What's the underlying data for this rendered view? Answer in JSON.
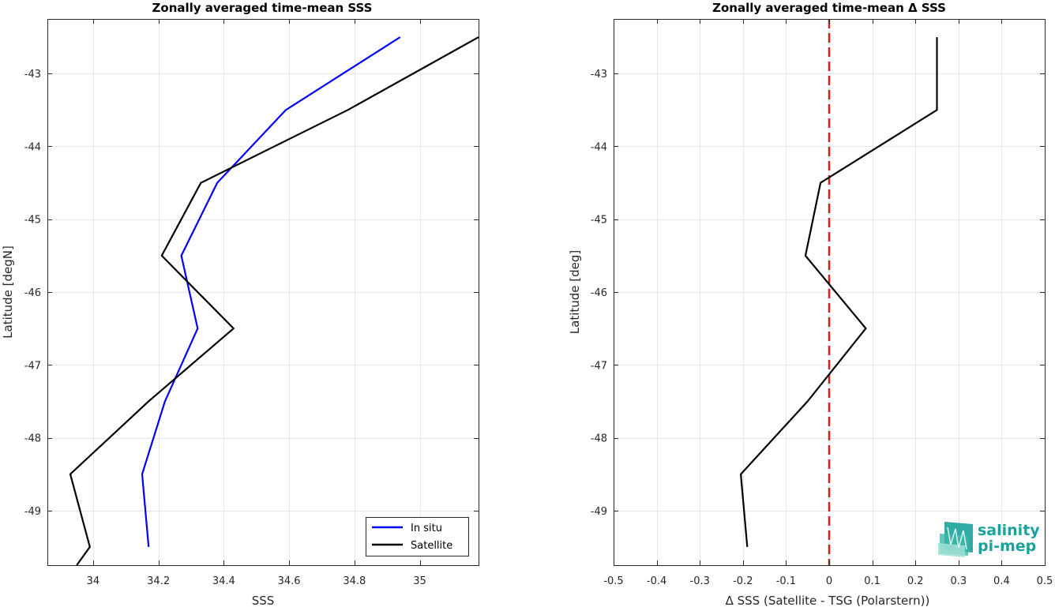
{
  "chart_data": [
    {
      "type": "line",
      "title": "Zonally averaged time-mean SSS",
      "xlabel": "SSS",
      "ylabel": "Latitude [degN]",
      "xlim": [
        33.86,
        35.18
      ],
      "ylim": [
        -49.75,
        -42.25
      ],
      "xticks": [
        34,
        34.2,
        34.4,
        34.6,
        34.8,
        35
      ],
      "xtick_labels": [
        "34",
        "34.2",
        "34.4",
        "34.6",
        "34.8",
        "35"
      ],
      "yticks": [
        -43,
        -44,
        -45,
        -46,
        -47,
        -48,
        -49
      ],
      "ytick_labels": [
        "-43",
        "-44",
        "-45",
        "-46",
        "-47",
        "-48",
        "-49"
      ],
      "grid": true,
      "legend_position": "bottom-right",
      "series": [
        {
          "name": "In situ",
          "color": "#0000ff",
          "x": [
            34.94,
            34.59,
            34.38,
            34.27,
            34.32,
            34.22,
            34.15,
            34.17
          ],
          "y": [
            -42.5,
            -43.5,
            -44.5,
            -45.5,
            -46.5,
            -47.5,
            -48.5,
            -49.5
          ]
        },
        {
          "name": "Satellite",
          "color": "#000000",
          "x": [
            35.18,
            34.78,
            34.33,
            34.21,
            34.43,
            34.17,
            33.93,
            33.99,
            33.95
          ],
          "y": [
            -42.5,
            -43.5,
            -44.5,
            -45.5,
            -46.5,
            -47.5,
            -48.5,
            -49.5,
            -49.75
          ]
        }
      ]
    },
    {
      "type": "line",
      "title": "Zonally averaged time-mean Δ SSS",
      "xlabel": "Δ SSS (Satellite - TSG (Polarstern))",
      "ylabel": "Latitude [deg]",
      "xlim": [
        -0.5,
        0.5
      ],
      "ylim": [
        -49.75,
        -42.25
      ],
      "xticks": [
        -0.5,
        -0.4,
        -0.3,
        -0.2,
        -0.1,
        0,
        0.1,
        0.2,
        0.3,
        0.4,
        0.5
      ],
      "xtick_labels": [
        "-0.5",
        "-0.4",
        "-0.3",
        "-0.2",
        "-0.1",
        "0",
        "0.1",
        "0.2",
        "0.3",
        "0.4",
        "0.5"
      ],
      "yticks": [
        -43,
        -44,
        -45,
        -46,
        -47,
        -48,
        -49
      ],
      "ytick_labels": [
        "-43",
        "-44",
        "-45",
        "-46",
        "-47",
        "-48",
        "-49"
      ],
      "grid": true,
      "reference_line": {
        "x": 0,
        "color": "#e31a1c",
        "style": "dashed"
      },
      "series": [
        {
          "color": "#000000",
          "x": [
            0.25,
            0.25,
            -0.02,
            -0.055,
            0.085,
            -0.05,
            -0.205,
            -0.19
          ],
          "y": [
            -42.5,
            -43.5,
            -44.5,
            -45.5,
            -46.5,
            -47.5,
            -48.5,
            -49.5
          ]
        }
      ]
    }
  ],
  "logo": {
    "line1": "salinity",
    "line2": "pi-mep",
    "color": "#1aa39a"
  }
}
